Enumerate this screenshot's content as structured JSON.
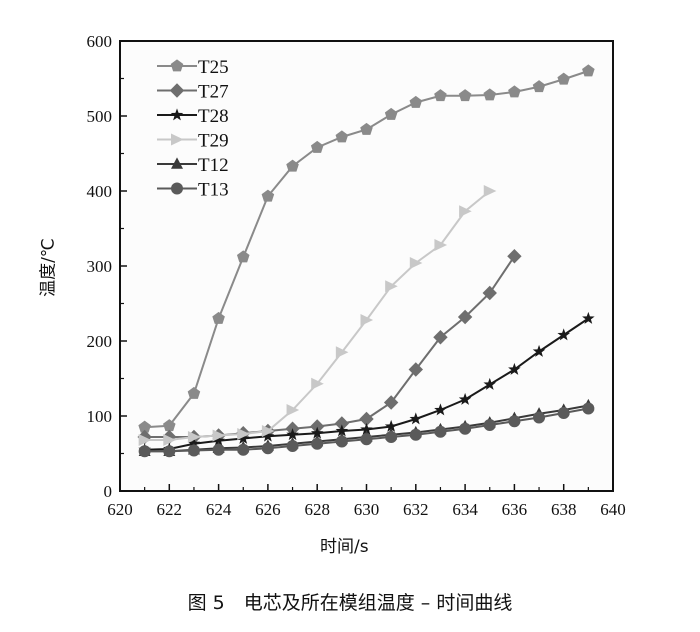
{
  "chart_data": {
    "type": "line",
    "xlabel": "时间/s",
    "ylabel": "温度/℃",
    "xlim": [
      620,
      640
    ],
    "ylim": [
      0,
      600
    ],
    "xticks": [
      620,
      622,
      624,
      626,
      628,
      630,
      632,
      634,
      636,
      638,
      640
    ],
    "yticks": [
      0,
      100,
      200,
      300,
      400,
      500,
      600
    ],
    "grid": false,
    "legend_position": "top-left",
    "series": [
      {
        "name": "T25",
        "marker": "pentagon",
        "color": "#8a8a8a",
        "x": [
          621,
          622,
          623,
          624,
          625,
          626,
          627,
          628,
          629,
          630,
          631,
          632,
          633,
          634,
          635,
          636,
          637,
          638,
          639
        ],
        "values": [
          85,
          87,
          130,
          230,
          312,
          393,
          433,
          458,
          472,
          482,
          502,
          518,
          527,
          527,
          528,
          532,
          539,
          549,
          560
        ]
      },
      {
        "name": "T27",
        "marker": "diamond",
        "color": "#6e6e6e",
        "x": [
          621,
          622,
          623,
          624,
          625,
          626,
          627,
          628,
          629,
          630,
          631,
          632,
          633,
          634,
          635,
          636
        ],
        "values": [
          72,
          72,
          72,
          74,
          77,
          80,
          83,
          86,
          90,
          96,
          118,
          162,
          205,
          232,
          264,
          313
        ]
      },
      {
        "name": "T28",
        "marker": "star",
        "color": "#1a1a1a",
        "x": [
          621,
          622,
          623,
          624,
          625,
          626,
          627,
          628,
          629,
          630,
          631,
          632,
          633,
          634,
          635,
          636,
          637,
          638,
          639
        ],
        "values": [
          55,
          56,
          63,
          67,
          70,
          73,
          75,
          77,
          80,
          82,
          86,
          96,
          108,
          122,
          142,
          162,
          186,
          208,
          230
        ]
      },
      {
        "name": "T29",
        "marker": "triangle-right",
        "color": "#c8c8c8",
        "x": [
          621,
          622,
          623,
          624,
          625,
          626,
          627,
          628,
          629,
          630,
          631,
          632,
          633,
          634,
          635
        ],
        "values": [
          68,
          68,
          72,
          74,
          76,
          80,
          108,
          143,
          185,
          228,
          273,
          304,
          328,
          373,
          400
        ]
      },
      {
        "name": "T12",
        "marker": "triangle-up",
        "color": "#3a3a3a",
        "x": [
          621,
          622,
          623,
          624,
          625,
          626,
          627,
          628,
          629,
          630,
          631,
          632,
          633,
          634,
          635,
          636,
          637,
          638,
          639
        ],
        "values": [
          53,
          53,
          55,
          57,
          58,
          60,
          63,
          66,
          69,
          72,
          75,
          78,
          82,
          86,
          91,
          97,
          103,
          108,
          114
        ]
      },
      {
        "name": "T13",
        "marker": "circle",
        "color": "#5a5a5a",
        "x": [
          621,
          622,
          623,
          624,
          625,
          626,
          627,
          628,
          629,
          630,
          631,
          632,
          633,
          634,
          635,
          636,
          637,
          638,
          639
        ],
        "values": [
          53,
          53,
          54,
          55,
          55,
          57,
          60,
          63,
          66,
          69,
          72,
          75,
          79,
          83,
          88,
          93,
          98,
          104,
          110
        ]
      }
    ]
  },
  "caption": "图 5　电芯及所在模组温度 – 时间曲线"
}
